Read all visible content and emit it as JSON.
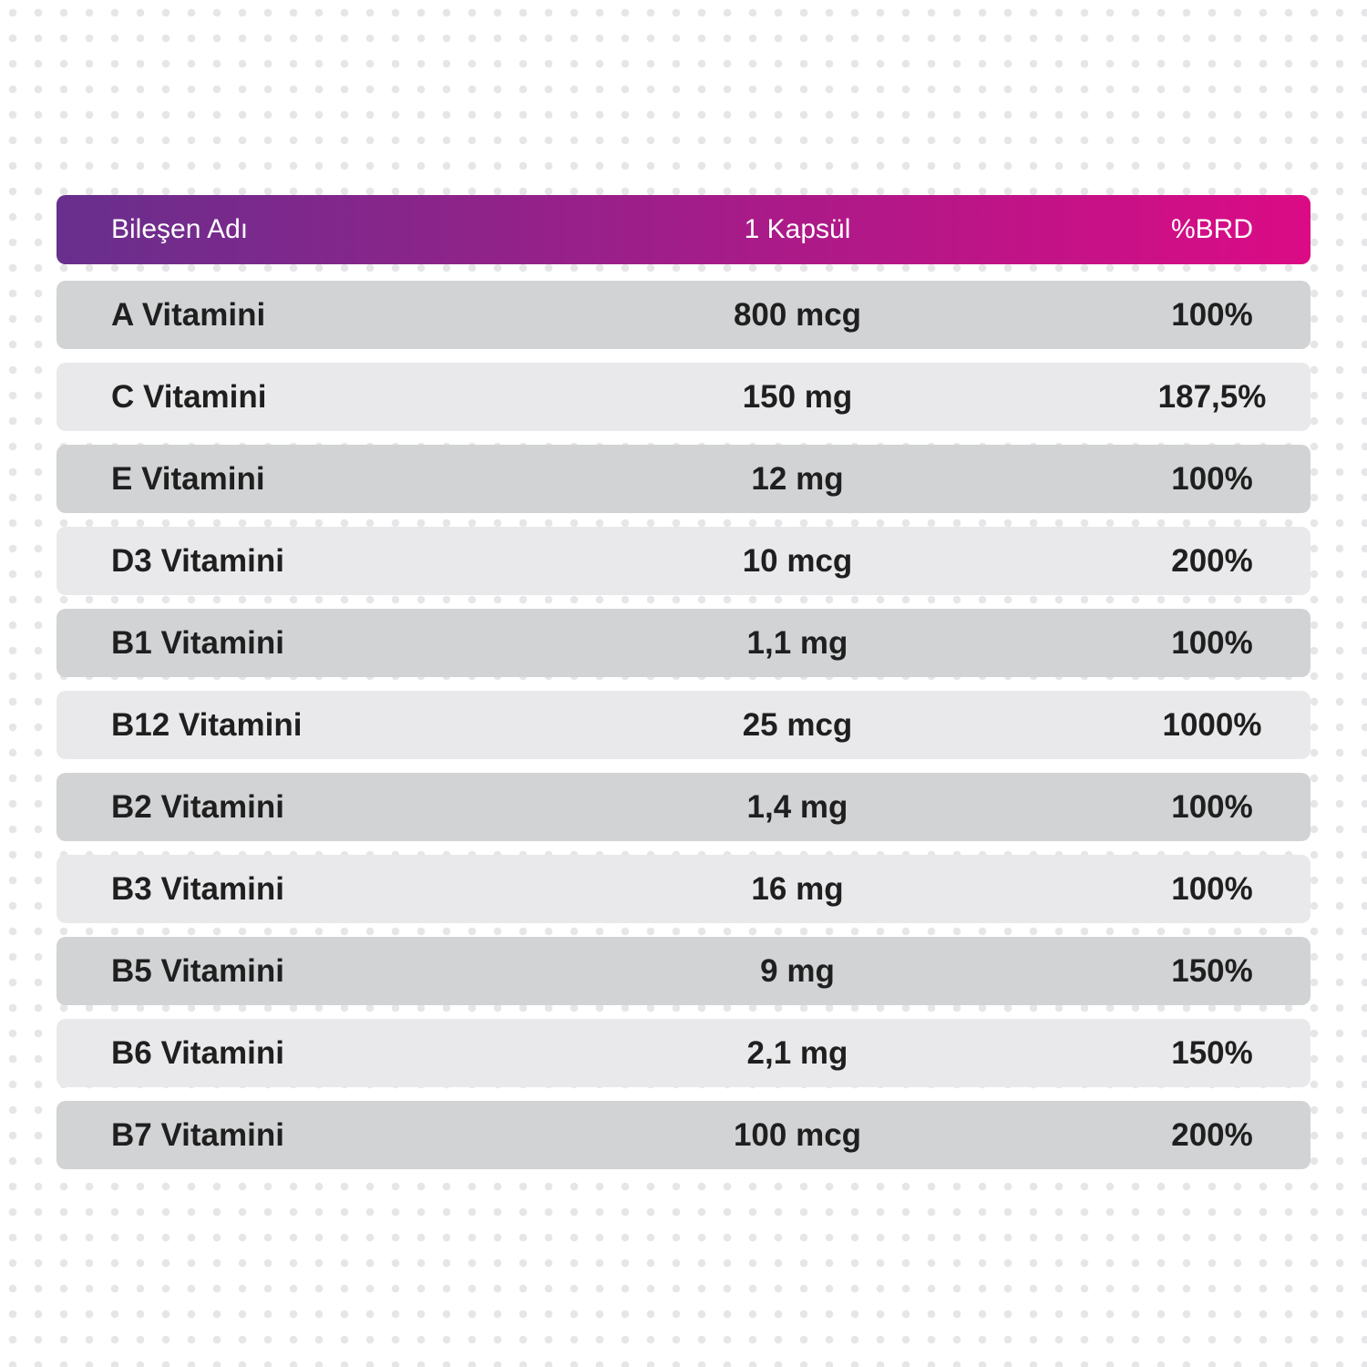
{
  "colors": {
    "header_gradient_start": "#682f8d",
    "header_gradient_end": "#db0b85",
    "row_dark": "#d2d3d5",
    "row_light": "#e9e9eb"
  },
  "table": {
    "headers": [
      "Bileşen Adı",
      "1 Kapsül",
      "%BRD"
    ],
    "rows": [
      {
        "name": "A Vitamini",
        "amount": "800 mcg",
        "rdi": "100%"
      },
      {
        "name": "C Vitamini",
        "amount": "150 mg",
        "rdi": "187,5%"
      },
      {
        "name": "E Vitamini",
        "amount": "12 mg",
        "rdi": "100%"
      },
      {
        "name": "D3 Vitamini",
        "amount": "10 mcg",
        "rdi": "200%"
      },
      {
        "name": "B1 Vitamini",
        "amount": "1,1 mg",
        "rdi": "100%"
      },
      {
        "name": "B12 Vitamini",
        "amount": "25 mcg",
        "rdi": "1000%"
      },
      {
        "name": "B2 Vitamini",
        "amount": "1,4 mg",
        "rdi": "100%"
      },
      {
        "name": "B3 Vitamini",
        "amount": "16 mg",
        "rdi": "100%"
      },
      {
        "name": "B5 Vitamini",
        "amount": "9 mg",
        "rdi": "150%"
      },
      {
        "name": "B6 Vitamini",
        "amount": "2,1 mg",
        "rdi": "150%"
      },
      {
        "name": "B7 Vitamini",
        "amount": "100 mcg",
        "rdi": "200%"
      }
    ]
  }
}
